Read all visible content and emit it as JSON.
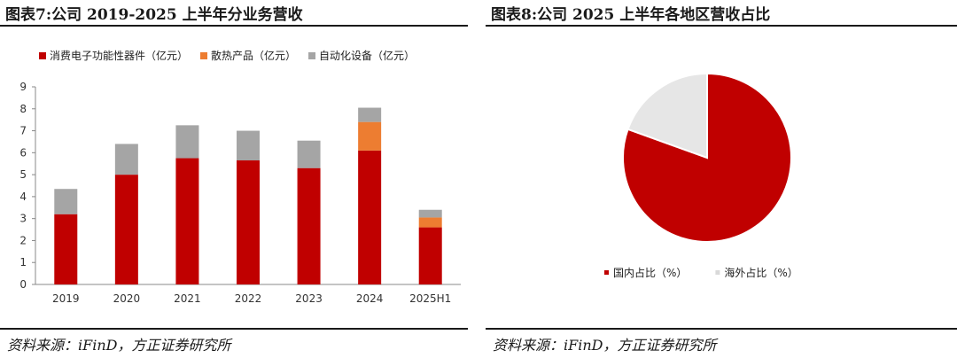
{
  "left_panel": {
    "title": "图表7:公司 2019-2025 上半年分业务营收",
    "source": "资料来源：iFinD，方正证券研究所"
  },
  "right_panel": {
    "title": "图表8:公司 2025 上半年各地区营收占比",
    "source": "资料来源：iFinD，方正证券研究所"
  },
  "chart_data": [
    {
      "type": "bar",
      "stacked": true,
      "categories": [
        "2019",
        "2020",
        "2021",
        "2022",
        "2023",
        "2024",
        "2025H1"
      ],
      "series": [
        {
          "name": "消费电子功能性器件（亿元）",
          "color": "#c00000",
          "values": [
            3.2,
            5.0,
            5.75,
            5.65,
            5.3,
            6.1,
            2.6
          ]
        },
        {
          "name": "散热产品（亿元）",
          "color": "#ed7d31",
          "values": [
            0,
            0,
            0,
            0,
            0,
            1.3,
            0.45
          ]
        },
        {
          "name": "自动化设备（亿元）",
          "color": "#a5a5a5",
          "values": [
            1.15,
            1.4,
            1.5,
            1.35,
            1.25,
            0.65,
            0.35
          ]
        }
      ],
      "yticks": [
        0,
        1,
        2,
        3,
        4,
        5,
        6,
        7,
        8,
        9
      ],
      "ylim": [
        0,
        9
      ],
      "grid": false,
      "legend_position": "top-left"
    },
    {
      "type": "pie",
      "labels": [
        "国内占比（%）",
        "海外占比（%）"
      ],
      "values": [
        80.5,
        19.5
      ],
      "colors": [
        "#c00000",
        "#e6e6e6"
      ],
      "legend_position": "bottom"
    }
  ]
}
